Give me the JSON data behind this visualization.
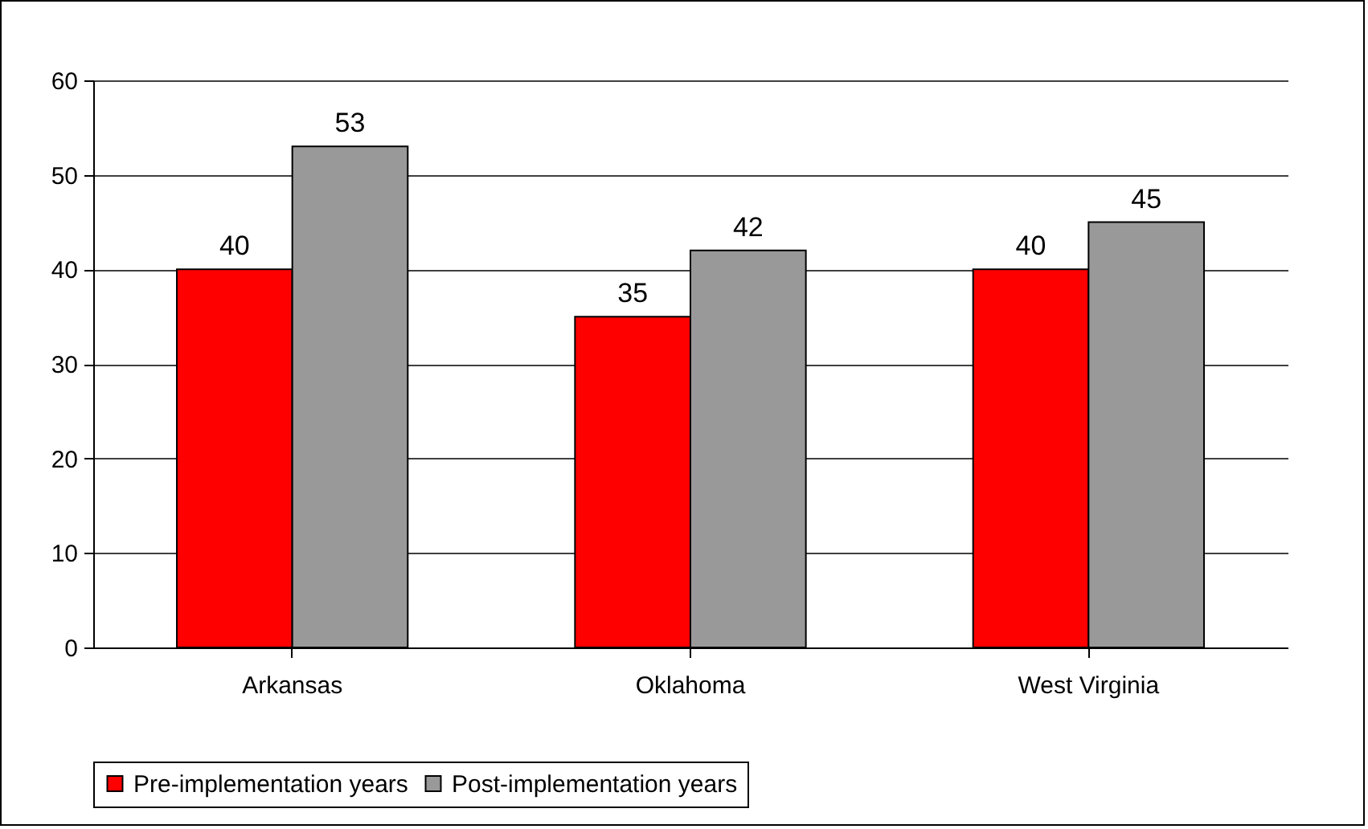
{
  "chart_data": {
    "type": "bar",
    "categories": [
      "Arkansas",
      "Oklahoma",
      "West Virginia"
    ],
    "series": [
      {
        "name": "Pre-implementation years",
        "color": "#ff0000",
        "values": [
          40,
          35,
          40
        ]
      },
      {
        "name": "Post-implementation years",
        "color": "#999999",
        "values": [
          53,
          42,
          45
        ]
      }
    ],
    "ylim": [
      0,
      60
    ],
    "yticks": [
      0,
      10,
      20,
      30,
      40,
      50,
      60
    ],
    "grid": "y",
    "legend": "bottom",
    "data_labels": true
  }
}
